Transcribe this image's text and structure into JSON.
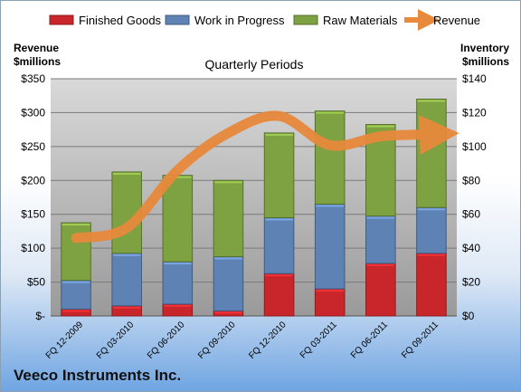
{
  "company_name": "Veeco Instruments Inc.",
  "chart_data": {
    "type": "bar",
    "stacked": true,
    "title": "Quarterly Periods",
    "categories": [
      "FQ 12-2009",
      "FQ 03-2010",
      "FQ 06-2010",
      "FQ 09-2010",
      "FQ 12-2010",
      "FQ 03-2011",
      "FQ 06-2011",
      "FQ 09-2011"
    ],
    "ylabel_left": [
      "Revenue",
      "$millions"
    ],
    "ylabel_right": [
      "Inventory",
      "$millions"
    ],
    "ylim_left": [
      0,
      350
    ],
    "ylim_right": [
      0,
      140
    ],
    "left_ticks": [
      "$-",
      "$50",
      "$100",
      "$150",
      "$200",
      "$250",
      "$300",
      "$350"
    ],
    "right_ticks": [
      "$0",
      "$20",
      "$40",
      "$60",
      "$80",
      "$100",
      "$120",
      "$140"
    ],
    "inventory_series": [
      {
        "name": "Finished Goods",
        "color": "#c9262b",
        "values": [
          4,
          6,
          7,
          3,
          25,
          16,
          31,
          37
        ]
      },
      {
        "name": "Work in Progress",
        "color": "#5f82b4",
        "values": [
          17,
          31,
          25,
          32,
          33,
          50,
          28,
          27
        ]
      },
      {
        "name": "Raw Materials",
        "color": "#7ea142",
        "values": [
          34,
          48,
          51,
          45,
          50,
          55,
          54,
          64
        ]
      }
    ],
    "revenue_series": {
      "name": "Revenue",
      "color": "#e8893b",
      "values": [
        115,
        130,
        215,
        270,
        295,
        252,
        265,
        268
      ]
    },
    "grid": true,
    "legend_position": "top"
  }
}
